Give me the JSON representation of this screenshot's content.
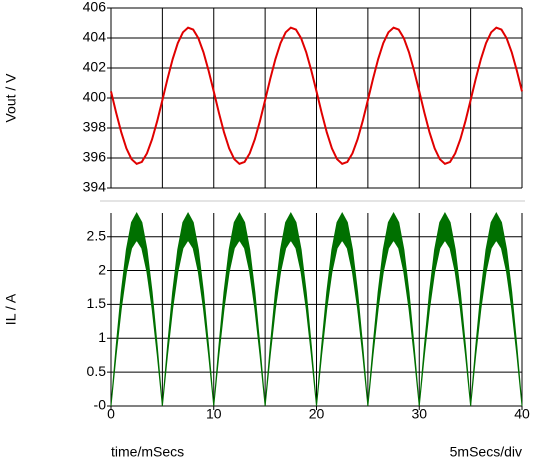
{
  "chart_data": [
    {
      "type": "line",
      "y_label": "Vout / V",
      "ylim": [
        394,
        406
      ],
      "yticks": [
        394,
        396,
        398,
        400,
        402,
        404,
        406
      ],
      "xlim": [
        0,
        40
      ],
      "xgrid": [
        0,
        5,
        10,
        15,
        20,
        25,
        30,
        35,
        40
      ],
      "grid": true,
      "x": [
        0,
        0.5,
        1,
        1.5,
        2,
        2.5,
        3,
        3.5,
        4,
        4.5,
        5,
        5.5,
        6,
        6.5,
        7,
        7.5,
        8,
        8.5,
        9,
        9.5,
        10,
        10.5,
        11,
        11.5,
        12,
        12.5,
        13,
        13.5,
        14,
        14.5,
        15,
        15.5,
        16,
        16.5,
        17,
        17.5,
        18,
        18.5,
        19,
        19.5,
        20,
        20.5,
        21,
        21.5,
        22,
        22.5,
        23,
        23.5,
        24,
        24.5,
        25,
        25.5,
        26,
        26.5,
        27,
        27.5,
        28,
        28.5,
        29,
        29.5,
        30,
        30.5,
        31,
        31.5,
        32,
        32.5,
        33,
        33.5,
        34,
        34.5,
        35,
        35.5,
        36,
        36.5,
        37,
        37.5,
        38,
        38.5,
        39,
        39.5,
        40
      ],
      "series": [
        {
          "color": "#e00000",
          "values": [
            400.44,
            399.02,
            397.71,
            396.64,
            395.92,
            395.61,
            395.74,
            396.31,
            397.25,
            398.47,
            399.86,
            401.28,
            402.59,
            403.66,
            404.38,
            404.69,
            404.56,
            403.99,
            403.05,
            401.82,
            400.44,
            399.02,
            397.71,
            396.64,
            395.92,
            395.61,
            395.74,
            396.31,
            397.25,
            398.47,
            399.86,
            401.28,
            402.59,
            403.66,
            404.38,
            404.69,
            404.56,
            403.99,
            403.05,
            401.82,
            400.44,
            399.02,
            397.71,
            396.64,
            395.92,
            395.61,
            395.74,
            396.31,
            397.25,
            398.47,
            399.86,
            401.28,
            402.59,
            403.66,
            404.38,
            404.69,
            404.56,
            403.99,
            403.05,
            401.82,
            400.44,
            399.02,
            397.71,
            396.64,
            395.92,
            395.61,
            395.74,
            396.31,
            397.25,
            398.47,
            399.86,
            401.28,
            402.59,
            403.66,
            404.38,
            404.69,
            404.56,
            403.99,
            403.05,
            401.82,
            400.44
          ]
        }
      ]
    },
    {
      "type": "band",
      "y_label": "IL / A",
      "ylim": [
        0,
        2.85
      ],
      "yticks": [
        {
          "value": 0,
          "label": "-0"
        },
        0.5,
        1,
        1.5,
        2,
        2.5
      ],
      "xlim": [
        0,
        40
      ],
      "xgrid": [
        0,
        5,
        10,
        15,
        20,
        25,
        30,
        35,
        40
      ],
      "xticks": [
        0,
        10,
        20,
        30,
        40
      ],
      "grid": true,
      "x_label": "time/mSecs",
      "annotation": "5mSecs/div",
      "x": [
        0,
        0.5,
        1,
        1.5,
        2,
        2.5,
        3,
        3.5,
        4,
        4.5,
        5,
        5.5,
        6,
        6.5,
        7,
        7.5,
        8,
        8.5,
        9,
        9.5,
        10,
        10.5,
        11,
        11.5,
        12,
        12.5,
        13,
        13.5,
        14,
        14.5,
        15,
        15.5,
        16,
        16.5,
        17,
        17.5,
        18,
        18.5,
        19,
        19.5,
        20,
        20.5,
        21,
        21.5,
        22,
        22.5,
        23,
        23.5,
        24,
        24.5,
        25,
        25.5,
        26,
        26.5,
        27,
        27.5,
        28,
        28.5,
        29,
        29.5,
        30,
        30.5,
        31,
        31.5,
        32,
        32.5,
        33,
        33.5,
        34,
        34.5,
        35,
        35.5,
        36,
        36.5,
        37,
        37.5,
        38,
        38.5,
        39,
        39.5,
        40
      ],
      "series": [
        {
          "color": "#007000",
          "values": [
            0,
            0.88,
            1.68,
            2.31,
            2.71,
            2.85,
            2.71,
            2.31,
            1.68,
            0.88,
            0,
            0.88,
            1.68,
            2.31,
            2.71,
            2.85,
            2.71,
            2.31,
            1.68,
            0.88,
            0,
            0.88,
            1.68,
            2.31,
            2.71,
            2.85,
            2.71,
            2.31,
            1.68,
            0.88,
            0,
            0.88,
            1.68,
            2.31,
            2.71,
            2.85,
            2.71,
            2.31,
            1.68,
            0.88,
            0,
            0.88,
            1.68,
            2.31,
            2.71,
            2.85,
            2.71,
            2.31,
            1.68,
            0.88,
            0,
            0.88,
            1.68,
            2.31,
            2.71,
            2.85,
            2.71,
            2.31,
            1.68,
            0.88,
            0,
            0.88,
            1.68,
            2.31,
            2.71,
            2.85,
            2.71,
            2.31,
            1.68,
            0.88,
            0,
            0.88,
            1.68,
            2.31,
            2.71,
            2.85,
            2.71,
            2.31,
            1.68,
            0.88,
            0
          ]
        },
        {
          "color": "#007000",
          "values": [
            0,
            0.76,
            1.44,
            1.98,
            2.33,
            2.45,
            2.33,
            1.98,
            1.44,
            0.76,
            0,
            0.76,
            1.44,
            1.98,
            2.33,
            2.45,
            2.33,
            1.98,
            1.44,
            0.76,
            0,
            0.76,
            1.44,
            1.98,
            2.33,
            2.45,
            2.33,
            1.98,
            1.44,
            0.76,
            0,
            0.76,
            1.44,
            1.98,
            2.33,
            2.45,
            2.33,
            1.98,
            1.44,
            0.76,
            0,
            0.76,
            1.44,
            1.98,
            2.33,
            2.45,
            2.33,
            1.98,
            1.44,
            0.76,
            0,
            0.76,
            1.44,
            1.98,
            2.33,
            2.45,
            2.33,
            1.98,
            1.44,
            0.76,
            0,
            0.76,
            1.44,
            1.98,
            2.33,
            2.45,
            2.33,
            1.98,
            1.44,
            0.76,
            0,
            0.76,
            1.44,
            1.98,
            2.33,
            2.45,
            2.33,
            1.98,
            1.44,
            0.76,
            0
          ]
        }
      ]
    }
  ]
}
